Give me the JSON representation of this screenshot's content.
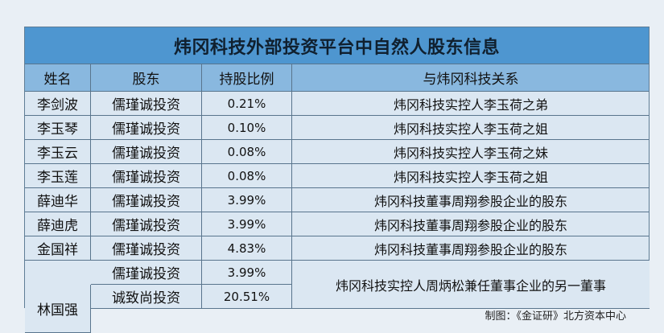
{
  "title": "炜冈科技外部投资平台中自然人股东信息",
  "headers": [
    "姓名",
    "股东",
    "持股比例",
    "与炜冈科技关系"
  ],
  "rows": [
    {
      "name": "李剑波",
      "shareholder": "儒瑾诚投资",
      "ratio": "0.21%",
      "relation": "炜冈科技实控人李玉荷之弟"
    },
    {
      "name": "李玉琴",
      "shareholder": "儒瑾诚投资",
      "ratio": "0.10%",
      "relation": "炜冈科技实控人李玉荷之姐"
    },
    {
      "name": "李玉云",
      "shareholder": "儒瑾诚投资",
      "ratio": "0.08%",
      "relation": "炜冈科技实控人李玉荷之妹"
    },
    {
      "name": "李玉莲",
      "shareholder": "儒瑾诚投资",
      "ratio": "0.08%",
      "relation": "炜冈科技实控人李玉荷之姐"
    },
    {
      "name": "薛迪华",
      "shareholder": "儒瑾诚投资",
      "ratio": "3.99%",
      "relation": "炜冈科技董事周翔参股企业的股东"
    },
    {
      "name": "薛迪虎",
      "shareholder": "儒瑾诚投资",
      "ratio": "3.99%",
      "relation": "炜冈科技董事周翔参股企业的股东"
    },
    {
      "name": "金国祥",
      "shareholder": "儒瑾诚投资",
      "ratio": "4.83%",
      "relation": "炜冈科技董事周翔参股企业的股东"
    }
  ],
  "merged": {
    "name": "林国强",
    "entries": [
      {
        "shareholder": "儒瑾诚投资",
        "ratio": "3.99%"
      },
      {
        "shareholder": "诚致尚投资",
        "ratio": "20.51%"
      }
    ],
    "relation": "炜冈科技实控人周炳松兼任董事企业的另一董事"
  },
  "caption": "制图：《金证研》北方资本中心"
}
